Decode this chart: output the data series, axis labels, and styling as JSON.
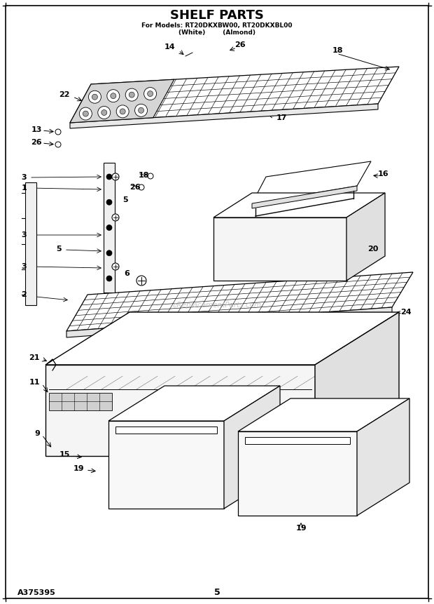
{
  "title": "SHELF PARTS",
  "subtitle_line1": "For Models: RT20DKXBW00, RT20DKXBL00",
  "subtitle_line2": "(White)        (Almond)",
  "bg_color": "#ffffff",
  "text_color": "#000000",
  "watermark": "eReplacementParts.com",
  "footer_left": "A375395",
  "footer_center": "5"
}
